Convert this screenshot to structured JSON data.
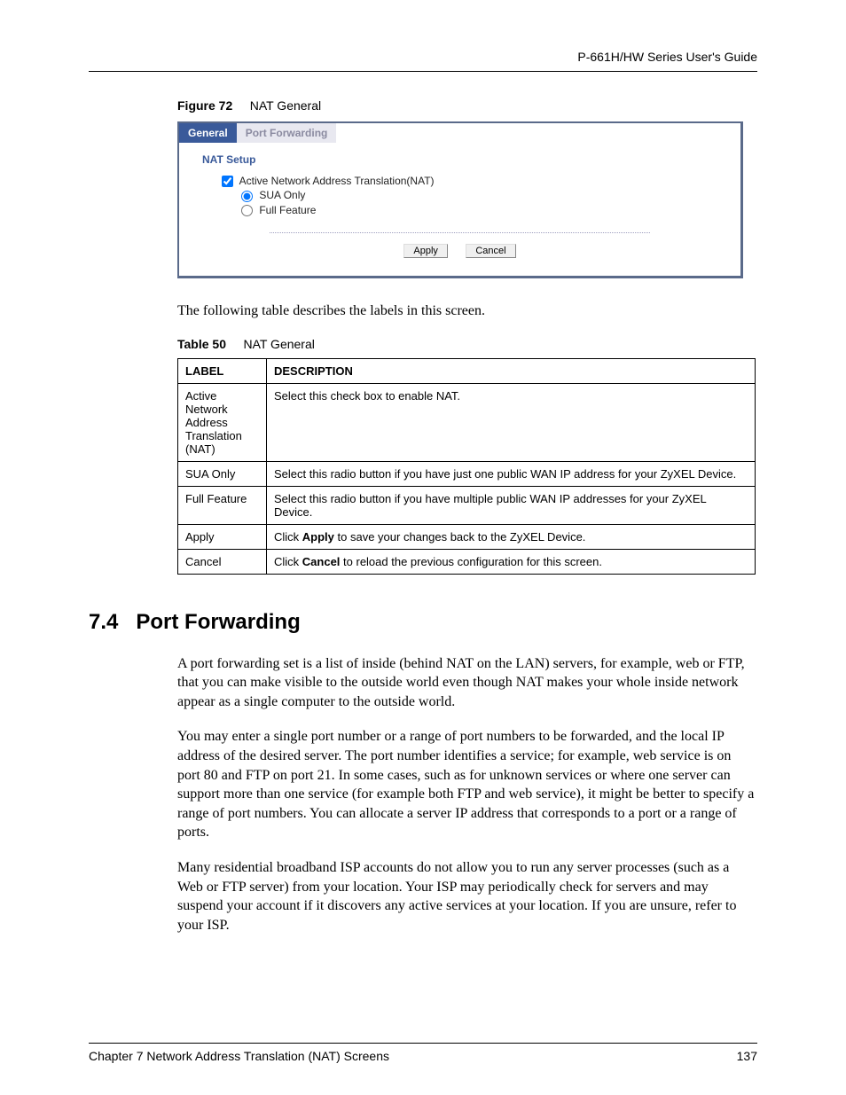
{
  "header": {
    "guide_title": "P-661H/HW Series User's Guide"
  },
  "figure": {
    "number": "Figure 72",
    "title": "NAT General"
  },
  "ui": {
    "tabs": {
      "active": "General",
      "inactive": "Port Forwarding"
    },
    "section_title": "NAT Setup",
    "checkbox_label": "Active Network Address Translation(NAT)",
    "checkbox_checked": true,
    "radio": {
      "sua": "SUA Only",
      "full": "Full Feature",
      "selected": "sua"
    },
    "buttons": {
      "apply": "Apply",
      "cancel": "Cancel"
    }
  },
  "intro_para": "The following table describes the labels in this screen.",
  "table_caption": {
    "number": "Table 50",
    "title": "NAT General"
  },
  "table": {
    "header": {
      "label": "LABEL",
      "description": "DESCRIPTION"
    },
    "rows": [
      {
        "label": "Active Network Address Translation (NAT)",
        "desc_pre": "Select this check box to enable NAT.",
        "desc_bold": "",
        "desc_post": ""
      },
      {
        "label": "SUA Only",
        "desc_pre": "Select this radio button if you have just one public WAN IP address for your ZyXEL Device.",
        "desc_bold": "",
        "desc_post": ""
      },
      {
        "label": "Full Feature",
        "desc_pre": "Select this radio button if you have multiple public WAN IP addresses for your ZyXEL Device.",
        "desc_bold": "",
        "desc_post": ""
      },
      {
        "label": "Apply",
        "desc_pre": "Click ",
        "desc_bold": "Apply",
        "desc_post": " to save your changes back to the ZyXEL Device."
      },
      {
        "label": "Cancel",
        "desc_pre": "Click ",
        "desc_bold": "Cancel",
        "desc_post": " to reload the previous configuration for this screen."
      }
    ]
  },
  "section": {
    "number": "7.4",
    "title": "Port Forwarding"
  },
  "paras": {
    "p1": "A port forwarding set is a list of inside (behind NAT on the LAN) servers, for example, web or FTP, that you can make visible to the outside world even though NAT makes your whole inside network appear as a single computer to the outside world.",
    "p2": "You may enter a single port number or a range of port numbers to be forwarded, and the local IP address of the desired server. The port number identifies a service; for example, web service is on port 80 and FTP on port 21. In some cases, such as for unknown services or where one server can support more than one service (for example both FTP and web service), it might be better to specify a range of port numbers. You can allocate a server IP address that corresponds to a port or a range of ports.",
    "p3": "Many residential broadband ISP accounts do not allow you to run any server processes (such as a Web or FTP server) from your location. Your ISP may periodically check for servers and may suspend your account if it discovers any active services at your location. If you are unsure, refer to your ISP."
  },
  "footer": {
    "chapter": "Chapter 7 Network Address Translation (NAT) Screens",
    "page": "137"
  }
}
